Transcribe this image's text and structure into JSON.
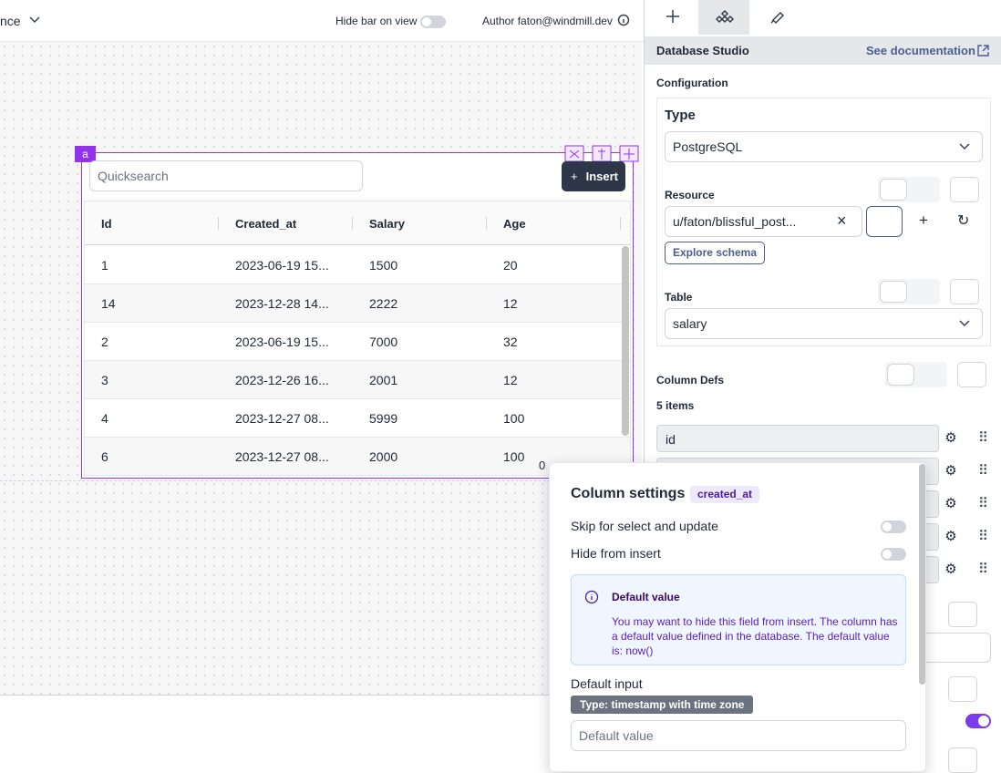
{
  "top_bar": {
    "cut_label": "nce",
    "hide_bar": "Hide bar on view",
    "author": "Author faton@windmill.dev"
  },
  "panel": {
    "title": "Database Studio",
    "docs_link": "See documentation",
    "configuration": "Configuration",
    "type_label": "Type",
    "type_value": "PostgreSQL",
    "resource_label": "Resource",
    "resource_value": "u/faton/blissful_post...",
    "explore": "Explore schema",
    "table_label": "Table",
    "table_value": "salary",
    "column_defs": "Column Defs",
    "items_count": "5 items",
    "first_column": "id"
  },
  "component": {
    "id": "a",
    "search_placeholder": "Quicksearch",
    "insert": "Insert",
    "headers": [
      "Id",
      "Created_at",
      "Salary",
      "Age"
    ],
    "rows": [
      [
        "1",
        "2023-06-19 15...",
        "1500",
        "20"
      ],
      [
        "14",
        "2023-12-28 14...",
        "2222",
        "12"
      ],
      [
        "2",
        "2023-06-19 15...",
        "7000",
        "32"
      ],
      [
        "3",
        "2023-12-26 16...",
        "2001",
        "12"
      ],
      [
        "4",
        "2023-12-27 08...",
        "5999",
        "100"
      ],
      [
        "6",
        "2023-12-27 08...",
        "2000",
        "100"
      ]
    ],
    "footer": "0"
  },
  "column_settings": {
    "title": "Column settings",
    "column": "created_at",
    "skip": "Skip for select and update",
    "hide": "Hide from insert",
    "alert_title": "Default value",
    "alert_text": "You may want to hide this field from insert. The column has a default value defined in the database. The default value is: now()",
    "default_input": "Default input",
    "type_badge": "Type: timestamp with time zone",
    "default_placeholder": "Default value"
  }
}
